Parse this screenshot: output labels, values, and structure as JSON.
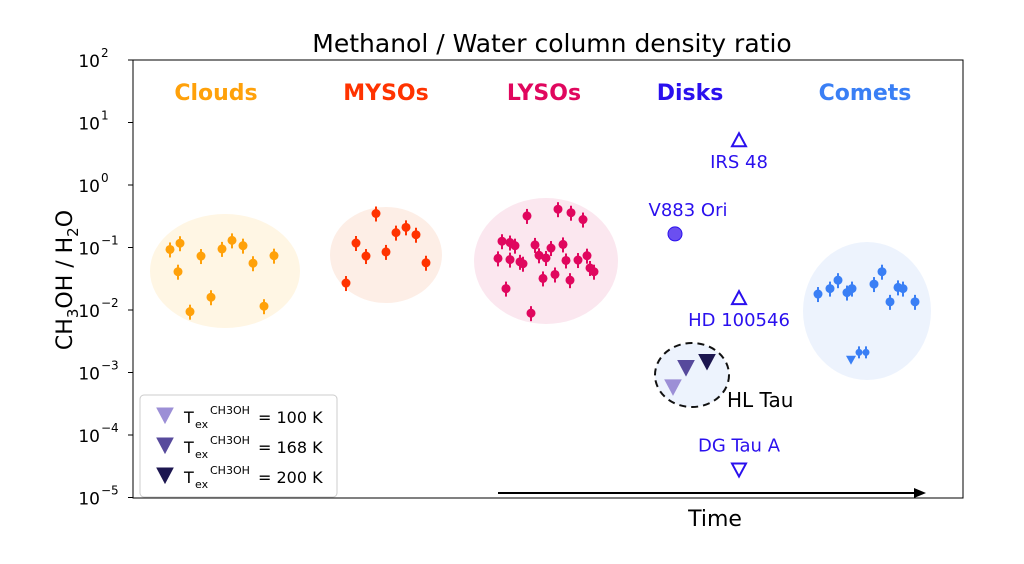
{
  "chart_data": {
    "type": "scatter",
    "title": "Methanol / Water column density ratio",
    "xlabel": "Time",
    "ylabel": "CH3OH / H2O",
    "yscale": "log",
    "ylim": [
      1e-05,
      100
    ],
    "yticks": [
      {
        "value": 100,
        "base": "10",
        "exp": "2"
      },
      {
        "value": 10,
        "base": "10",
        "exp": "1"
      },
      {
        "value": 1,
        "base": "10",
        "exp": "0"
      },
      {
        "value": 0.1,
        "base": "10",
        "exp": "−1"
      },
      {
        "value": 0.01,
        "base": "10",
        "exp": "−2"
      },
      {
        "value": 0.001,
        "base": "10",
        "exp": "−3"
      },
      {
        "value": 0.0001,
        "base": "10",
        "exp": "−4"
      },
      {
        "value": 1e-05,
        "base": "10",
        "exp": "−5"
      }
    ],
    "grid": false,
    "groups": [
      {
        "label": "Clouds",
        "color": "#ffa10a",
        "fill": "#fff6e4",
        "values": [
          0.093,
          0.117,
          0.041,
          0.0094,
          0.073,
          0.016,
          0.095,
          0.13,
          0.107,
          0.056,
          0.0115,
          0.074
        ]
      },
      {
        "label": "MYSOs",
        "color": "#ff3300",
        "fill": "#fdeee6",
        "values": [
          0.027,
          0.118,
          0.073,
          0.35,
          0.085,
          0.173,
          0.21,
          0.16,
          0.057
        ]
      },
      {
        "label": "LYSOs",
        "color": "#e0075e",
        "fill": "#fbe7ef",
        "values": [
          0.067,
          0.126,
          0.022,
          0.064,
          0.12,
          0.107,
          0.059,
          0.055,
          0.32,
          0.0089,
          0.11,
          0.075,
          0.032,
          0.068,
          0.098,
          0.037,
          0.41,
          0.112,
          0.062,
          0.03,
          0.36,
          0.063,
          0.28,
          0.074,
          0.047,
          0.041
        ]
      },
      {
        "label": "Disks",
        "color": "#2a10ee",
        "fill": "none",
        "values": []
      },
      {
        "label": "Comets",
        "color": "#3a7ff5",
        "fill": "#edf3fd",
        "values": [
          0.018,
          0.022,
          0.03,
          0.019,
          0.022,
          0.026,
          0.041,
          0.0135,
          0.023,
          0.022,
          0.0135
        ],
        "upper_limits": [
          0.0016,
          0.0021,
          0.0021
        ]
      }
    ],
    "disks": [
      {
        "name": "IRS 48",
        "value": 5.2,
        "marker": "lower-limit"
      },
      {
        "name": "V883 Ori",
        "value": 0.165,
        "marker": "detection"
      },
      {
        "name": "HD 100546",
        "value": 0.0155,
        "marker": "lower-limit"
      },
      {
        "name": "DG Tau A",
        "value": 2.8e-05,
        "marker": "upper-limit"
      }
    ],
    "hl_tau": {
      "name": "HL Tau",
      "points": [
        {
          "tex": "100 K",
          "value": 0.00059,
          "color": "#9c8fd6"
        },
        {
          "tex": "168 K",
          "value": 0.0012,
          "color": "#574a9c"
        },
        {
          "tex": "200 K",
          "value": 0.0015,
          "color": "#1c1650"
        }
      ]
    },
    "legend": {
      "placement": "lower-left",
      "entries": [
        {
          "sym": "T",
          "sub": "ex",
          "sup": "CH3OH",
          "text": "= 100 K"
        },
        {
          "sym": "T",
          "sub": "ex",
          "sup": "CH3OH",
          "text": "= 168 K"
        },
        {
          "sym": "T",
          "sub": "ex",
          "sup": "CH3OH",
          "text": "= 200 K"
        }
      ]
    }
  }
}
